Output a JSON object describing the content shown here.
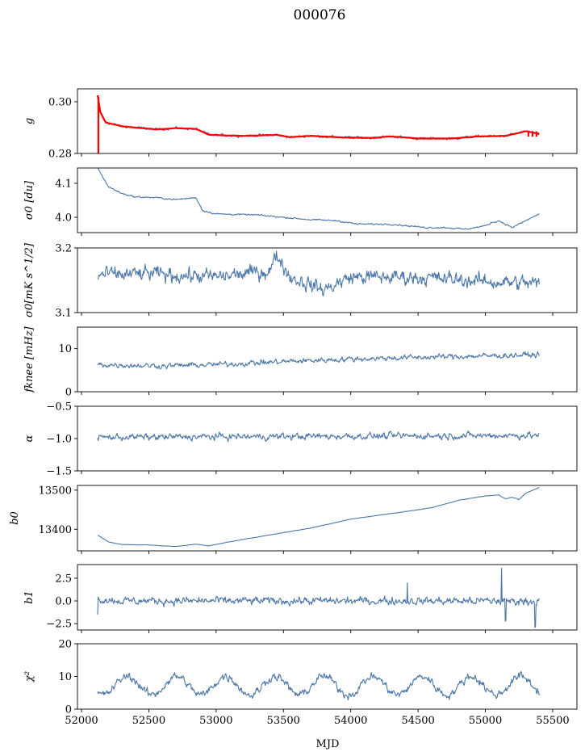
{
  "figure": {
    "title": "000076",
    "xlabel": "MJD"
  },
  "colors": {
    "series": "#4c77a8",
    "fit": "#ff0000",
    "axes": "#000000"
  },
  "chart_data": [
    {
      "type": "line",
      "ylabel": "g",
      "ylim": [
        0.28,
        0.305
      ],
      "yticks": [
        0.28,
        0.3
      ],
      "ytick_labels": [
        "0.28",
        "0.30"
      ],
      "xlim": [
        51970,
        55680
      ],
      "xticks": [
        52000,
        52500,
        53000,
        53500,
        54000,
        54500,
        55000,
        55500
      ],
      "gen": {
        "mode": "anchors",
        "noise": 0.00045,
        "anchors": [
          [
            52120,
            0.3025
          ],
          [
            52140,
            0.296
          ],
          [
            52180,
            0.292
          ],
          [
            52300,
            0.2905
          ],
          [
            52550,
            0.2893
          ],
          [
            52700,
            0.2898
          ],
          [
            52850,
            0.2895
          ],
          [
            52950,
            0.2872
          ],
          [
            53200,
            0.2868
          ],
          [
            53450,
            0.2872
          ],
          [
            53550,
            0.2863
          ],
          [
            53700,
            0.2868
          ],
          [
            53950,
            0.2862
          ],
          [
            54150,
            0.286
          ],
          [
            54300,
            0.2866
          ],
          [
            54500,
            0.2858
          ],
          [
            54750,
            0.2858
          ],
          [
            54950,
            0.2866
          ],
          [
            55150,
            0.2868
          ],
          [
            55300,
            0.2886
          ],
          [
            55350,
            0.2881
          ],
          [
            55400,
            0.2875
          ]
        ]
      },
      "series": [
        {
          "name": "",
          "color": "#4c77a8"
        },
        {
          "name": "",
          "color": "#ff0000",
          "overlay": true
        }
      ]
    },
    {
      "type": "line",
      "ylabel": "σ0 [du]",
      "ylim": [
        3.955,
        4.145
      ],
      "yticks": [
        4.0,
        4.1
      ],
      "ytick_labels": [
        "4.0",
        "4.1"
      ],
      "xlim": [
        51970,
        55680
      ],
      "xticks": [
        52000,
        52500,
        53000,
        53500,
        54000,
        54500,
        55000,
        55500
      ],
      "gen": {
        "mode": "anchors",
        "noise": 0.002,
        "anchors": [
          [
            52120,
            4.145
          ],
          [
            52200,
            4.09
          ],
          [
            52300,
            4.07
          ],
          [
            52400,
            4.06
          ],
          [
            52550,
            4.058
          ],
          [
            52700,
            4.052
          ],
          [
            52850,
            4.058
          ],
          [
            52900,
            4.02
          ],
          [
            53000,
            4.01
          ],
          [
            53300,
            4.007
          ],
          [
            53500,
            4.0
          ],
          [
            53700,
            3.993
          ],
          [
            53900,
            3.99
          ],
          [
            54050,
            3.98
          ],
          [
            54300,
            3.98
          ],
          [
            54550,
            3.97
          ],
          [
            54700,
            3.97
          ],
          [
            54850,
            3.965
          ],
          [
            55000,
            3.975
          ],
          [
            55050,
            3.985
          ],
          [
            55100,
            3.99
          ],
          [
            55200,
            3.97
          ],
          [
            55300,
            3.99
          ],
          [
            55400,
            4.01
          ]
        ]
      },
      "series": [
        {
          "name": "",
          "color": "#4c77a8"
        }
      ]
    },
    {
      "type": "line",
      "ylabel": "σ0[mK s^1/2]",
      "ylim": [
        3.1,
        3.2
      ],
      "yticks": [
        3.1,
        3.2
      ],
      "ytick_labels": [
        "3.1",
        "3.2"
      ],
      "xlim": [
        51970,
        55680
      ],
      "xticks": [
        52000,
        52500,
        53000,
        53500,
        54000,
        54500,
        55000,
        55500
      ],
      "gen": {
        "mode": "anchors",
        "noise": 0.01,
        "anchors": [
          [
            52120,
            3.158
          ],
          [
            52500,
            3.16
          ],
          [
            53000,
            3.155
          ],
          [
            53400,
            3.165
          ],
          [
            53450,
            3.19
          ],
          [
            53550,
            3.155
          ],
          [
            53800,
            3.135
          ],
          [
            54000,
            3.155
          ],
          [
            54500,
            3.155
          ],
          [
            55000,
            3.148
          ],
          [
            55400,
            3.145
          ]
        ]
      },
      "series": [
        {
          "name": "",
          "color": "#4c77a8"
        }
      ]
    },
    {
      "type": "line",
      "ylabel": "fknee [mHz]",
      "ylim": [
        0,
        15
      ],
      "yticks": [
        0,
        10
      ],
      "ytick_labels": [
        "0",
        "10"
      ],
      "xlim": [
        51970,
        55680
      ],
      "xticks": [
        52000,
        52500,
        53000,
        53500,
        54000,
        54500,
        55000,
        55500
      ],
      "gen": {
        "mode": "anchors",
        "noise": 0.55,
        "anchors": [
          [
            52120,
            6.3
          ],
          [
            52600,
            6.0
          ],
          [
            53000,
            6.3
          ],
          [
            53500,
            7.0
          ],
          [
            54000,
            7.6
          ],
          [
            54500,
            8.0
          ],
          [
            55000,
            8.3
          ],
          [
            55400,
            8.6
          ]
        ]
      },
      "series": [
        {
          "name": "",
          "color": "#4c77a8"
        }
      ]
    },
    {
      "type": "line",
      "ylabel": "α",
      "ylim": [
        -1.5,
        -0.5
      ],
      "yticks": [
        -1.5,
        -1.0,
        -0.5
      ],
      "ytick_labels": [
        "−1.5",
        "−1.0",
        "−0.5"
      ],
      "xlim": [
        51970,
        55680
      ],
      "xticks": [
        52000,
        52500,
        53000,
        53500,
        54000,
        54500,
        55000,
        55500
      ],
      "gen": {
        "mode": "anchors",
        "noise": 0.045,
        "anchors": [
          [
            52120,
            -0.98
          ],
          [
            55400,
            -0.95
          ]
        ]
      },
      "series": [
        {
          "name": "",
          "color": "#4c77a8"
        }
      ]
    },
    {
      "type": "line",
      "ylabel": "b0",
      "ylim": [
        13345,
        13512
      ],
      "yticks": [
        13400,
        13500
      ],
      "ytick_labels": [
        "13400",
        "13500"
      ],
      "xlim": [
        51970,
        55680
      ],
      "xticks": [
        52000,
        52500,
        53000,
        53500,
        54000,
        54500,
        55000,
        55500
      ],
      "gen": {
        "mode": "anchors",
        "noise": 0.4,
        "anchors": [
          [
            52120,
            13385
          ],
          [
            52200,
            13368
          ],
          [
            52300,
            13361
          ],
          [
            52500,
            13360
          ],
          [
            52700,
            13356
          ],
          [
            52850,
            13362
          ],
          [
            52950,
            13358
          ],
          [
            53100,
            13368
          ],
          [
            53300,
            13380
          ],
          [
            53700,
            13403
          ],
          [
            54000,
            13426
          ],
          [
            54400,
            13445
          ],
          [
            54600,
            13455
          ],
          [
            54800,
            13474
          ],
          [
            55000,
            13485
          ],
          [
            55100,
            13488
          ],
          [
            55150,
            13478
          ],
          [
            55200,
            13482
          ],
          [
            55250,
            13476
          ],
          [
            55300,
            13492
          ],
          [
            55400,
            13507
          ]
        ]
      },
      "series": [
        {
          "name": "",
          "color": "#4c77a8"
        }
      ]
    },
    {
      "type": "line",
      "ylabel": "b1",
      "ylim": [
        -3.2,
        4.0
      ],
      "yticks": [
        -2.5,
        0.0,
        2.5
      ],
      "ytick_labels": [
        "−2.5",
        "0.0",
        "2.5"
      ],
      "xlim": [
        51970,
        55680
      ],
      "xticks": [
        52000,
        52500,
        53000,
        53500,
        54000,
        54500,
        55000,
        55500
      ],
      "gen": {
        "mode": "anchors",
        "noise": 0.38,
        "anchors": [
          [
            52120,
            0.2
          ],
          [
            52300,
            0.0
          ],
          [
            55400,
            0.0
          ]
        ],
        "spikes": [
          [
            52120,
            -1.5
          ],
          [
            54420,
            2.0
          ],
          [
            55120,
            3.6
          ],
          [
            55150,
            -2.2
          ],
          [
            55370,
            -2.9
          ]
        ]
      },
      "series": [
        {
          "name": "",
          "color": "#4c77a8"
        }
      ]
    },
    {
      "type": "line",
      "ylabel": "χ²",
      "ylim": [
        0,
        20
      ],
      "yticks": [
        0,
        10,
        20
      ],
      "ytick_labels": [
        "0",
        "10",
        "20"
      ],
      "xlim": [
        51970,
        55680
      ],
      "xticks": [
        52000,
        52500,
        53000,
        53500,
        54000,
        54500,
        55000,
        55500
      ],
      "xtick_labels": [
        "52000",
        "52500",
        "53000",
        "53500",
        "54000",
        "54500",
        "55000",
        "55500"
      ],
      "gen": {
        "mode": "periodic",
        "base": 7.2,
        "amp": 2.8,
        "period": 365,
        "phase": 52250,
        "noise": 1.1
      },
      "series": [
        {
          "name": "",
          "color": "#4c77a8"
        }
      ]
    }
  ]
}
